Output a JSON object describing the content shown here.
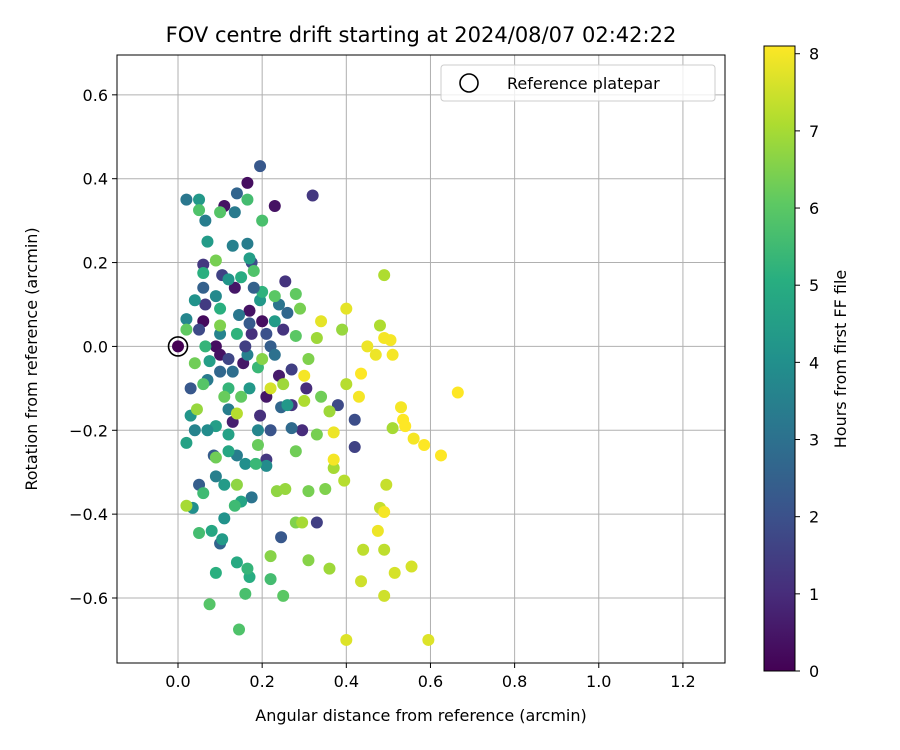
{
  "chart_data": {
    "type": "scatter",
    "title": "FOV centre drift starting at 2024/08/07 02:42:22",
    "xlabel": "Angular distance from reference (arcmin)",
    "ylabel": "Rotation from reference (arcmin)",
    "xlim": [
      -0.145,
      1.3
    ],
    "ylim": [
      -0.755,
      0.695
    ],
    "xticks": [
      0.0,
      0.2,
      0.4,
      0.6,
      0.8,
      1.0,
      1.2
    ],
    "xtick_labels": [
      "0.0",
      "0.2",
      "0.4",
      "0.6",
      "0.8",
      "1.0",
      "1.2"
    ],
    "yticks": [
      0.6,
      0.4,
      0.2,
      0.0,
      -0.2,
      -0.4,
      -0.6
    ],
    "ytick_labels": [
      "0.6",
      "0.4",
      "0.2",
      "0.0",
      "−0.2",
      "−0.4",
      "−0.6"
    ],
    "grid": true,
    "legend": {
      "position": "top-right",
      "entries": [
        "Reference platepar"
      ]
    },
    "reference_point": {
      "x": 0.0,
      "y": 0.0
    },
    "colorbar": {
      "label": "Hours from first FF file",
      "colormap": "viridis",
      "range": [
        0,
        8.1
      ],
      "ticks": [
        0,
        1,
        2,
        3,
        4,
        5,
        6,
        7,
        8
      ],
      "tick_labels": [
        "0",
        "1",
        "2",
        "3",
        "4",
        "5",
        "6",
        "7",
        "8"
      ]
    },
    "points": [
      {
        "x": 0.0,
        "y": 0.0,
        "h": 0.0
      },
      {
        "x": 0.165,
        "y": 0.39,
        "h": 0.3
      },
      {
        "x": 0.23,
        "y": 0.335,
        "h": 0.4
      },
      {
        "x": 0.11,
        "y": 0.335,
        "h": 0.4
      },
      {
        "x": 0.06,
        "y": 0.06,
        "h": 0.2
      },
      {
        "x": 0.09,
        "y": 0.0,
        "h": 0.3
      },
      {
        "x": 0.135,
        "y": 0.14,
        "h": 0.5
      },
      {
        "x": 0.17,
        "y": 0.085,
        "h": 0.4
      },
      {
        "x": 0.2,
        "y": 0.06,
        "h": 0.3
      },
      {
        "x": 0.155,
        "y": -0.04,
        "h": 0.5
      },
      {
        "x": 0.1,
        "y": -0.02,
        "h": 0.4
      },
      {
        "x": 0.24,
        "y": -0.07,
        "h": 0.6
      },
      {
        "x": 0.13,
        "y": -0.18,
        "h": 0.7
      },
      {
        "x": 0.21,
        "y": -0.12,
        "h": 0.5
      },
      {
        "x": 0.32,
        "y": 0.36,
        "h": 1.3
      },
      {
        "x": 0.255,
        "y": 0.155,
        "h": 1.2
      },
      {
        "x": 0.06,
        "y": 0.195,
        "h": 1.3
      },
      {
        "x": 0.175,
        "y": 0.03,
        "h": 1.1
      },
      {
        "x": 0.065,
        "y": 0.1,
        "h": 1.4
      },
      {
        "x": 0.25,
        "y": 0.04,
        "h": 1.2
      },
      {
        "x": 0.195,
        "y": -0.165,
        "h": 1.1
      },
      {
        "x": 0.305,
        "y": -0.1,
        "h": 1.0
      },
      {
        "x": 0.27,
        "y": -0.14,
        "h": 1.2
      },
      {
        "x": 0.295,
        "y": -0.2,
        "h": 1.0
      },
      {
        "x": 0.33,
        "y": -0.42,
        "h": 1.5
      },
      {
        "x": 0.21,
        "y": -0.27,
        "h": 1.3
      },
      {
        "x": 0.42,
        "y": -0.24,
        "h": 1.6
      },
      {
        "x": 0.38,
        "y": -0.14,
        "h": 1.8
      },
      {
        "x": 0.42,
        "y": -0.175,
        "h": 1.9
      },
      {
        "x": 0.27,
        "y": -0.055,
        "h": 1.5
      },
      {
        "x": 0.12,
        "y": -0.03,
        "h": 1.7
      },
      {
        "x": 0.05,
        "y": 0.04,
        "h": 1.8
      },
      {
        "x": 0.175,
        "y": 0.2,
        "h": 1.9
      },
      {
        "x": 0.105,
        "y": 0.17,
        "h": 1.6
      },
      {
        "x": 0.195,
        "y": 0.43,
        "h": 2.2
      },
      {
        "x": 0.14,
        "y": 0.365,
        "h": 2.6
      },
      {
        "x": 0.17,
        "y": 0.055,
        "h": 2.3
      },
      {
        "x": 0.22,
        "y": 0.0,
        "h": 2.4
      },
      {
        "x": 0.06,
        "y": 0.14,
        "h": 2.5
      },
      {
        "x": 0.03,
        "y": -0.1,
        "h": 2.2
      },
      {
        "x": 0.1,
        "y": -0.06,
        "h": 2.7
      },
      {
        "x": 0.22,
        "y": -0.2,
        "h": 2.1
      },
      {
        "x": 0.085,
        "y": -0.26,
        "h": 2.3
      },
      {
        "x": 0.05,
        "y": -0.33,
        "h": 2.4
      },
      {
        "x": 0.1,
        "y": -0.47,
        "h": 2.6
      },
      {
        "x": 0.245,
        "y": -0.455,
        "h": 2.2
      },
      {
        "x": 0.27,
        "y": -0.195,
        "h": 2.8
      },
      {
        "x": 0.245,
        "y": -0.145,
        "h": 2.7
      },
      {
        "x": 0.175,
        "y": -0.36,
        "h": 3.1
      },
      {
        "x": 0.02,
        "y": 0.35,
        "h": 3.2
      },
      {
        "x": 0.065,
        "y": 0.3,
        "h": 3.4
      },
      {
        "x": 0.135,
        "y": 0.32,
        "h": 3.3
      },
      {
        "x": 0.165,
        "y": 0.245,
        "h": 3.4
      },
      {
        "x": 0.13,
        "y": 0.24,
        "h": 3.5
      },
      {
        "x": 0.24,
        "y": 0.1,
        "h": 3.1
      },
      {
        "x": 0.145,
        "y": 0.075,
        "h": 3.2
      },
      {
        "x": 0.1,
        "y": 0.03,
        "h": 3.6
      },
      {
        "x": 0.02,
        "y": 0.065,
        "h": 3.7
      },
      {
        "x": 0.165,
        "y": -0.02,
        "h": 3.5
      },
      {
        "x": 0.07,
        "y": -0.08,
        "h": 3.3
      },
      {
        "x": 0.12,
        "y": -0.15,
        "h": 3.4
      },
      {
        "x": 0.04,
        "y": -0.2,
        "h": 3.6
      },
      {
        "x": 0.19,
        "y": -0.2,
        "h": 3.7
      },
      {
        "x": 0.14,
        "y": -0.26,
        "h": 3.4
      },
      {
        "x": 0.09,
        "y": -0.31,
        "h": 3.5
      },
      {
        "x": 0.21,
        "y": -0.285,
        "h": 3.9
      },
      {
        "x": 0.035,
        "y": -0.385,
        "h": 4.0
      },
      {
        "x": 0.16,
        "y": -0.28,
        "h": 4.0
      },
      {
        "x": 0.11,
        "y": -0.41,
        "h": 4.1
      },
      {
        "x": 0.05,
        "y": 0.35,
        "h": 4.3
      },
      {
        "x": 0.07,
        "y": 0.25,
        "h": 4.4
      },
      {
        "x": 0.17,
        "y": 0.21,
        "h": 4.5
      },
      {
        "x": 0.12,
        "y": 0.16,
        "h": 4.2
      },
      {
        "x": 0.04,
        "y": 0.11,
        "h": 4.1
      },
      {
        "x": 0.195,
        "y": 0.11,
        "h": 4.3
      },
      {
        "x": 0.23,
        "y": 0.06,
        "h": 4.4
      },
      {
        "x": 0.075,
        "y": -0.035,
        "h": 4.5
      },
      {
        "x": 0.17,
        "y": -0.1,
        "h": 4.3
      },
      {
        "x": 0.03,
        "y": -0.165,
        "h": 4.2
      },
      {
        "x": 0.09,
        "y": -0.19,
        "h": 4.5
      },
      {
        "x": 0.11,
        "y": -0.33,
        "h": 4.4
      },
      {
        "x": 0.02,
        "y": -0.23,
        "h": 4.6
      },
      {
        "x": 0.12,
        "y": -0.25,
        "h": 4.8
      },
      {
        "x": 0.15,
        "y": -0.37,
        "h": 4.7
      },
      {
        "x": 0.08,
        "y": -0.44,
        "h": 4.8
      },
      {
        "x": 0.14,
        "y": -0.515,
        "h": 4.9
      },
      {
        "x": 0.17,
        "y": -0.55,
        "h": 5.0
      },
      {
        "x": 0.09,
        "y": -0.54,
        "h": 5.1
      },
      {
        "x": 0.15,
        "y": 0.165,
        "h": 5.0
      },
      {
        "x": 0.06,
        "y": 0.175,
        "h": 5.1
      },
      {
        "x": 0.2,
        "y": 0.13,
        "h": 5.2
      },
      {
        "x": 0.1,
        "y": 0.09,
        "h": 5.1
      },
      {
        "x": 0.14,
        "y": 0.03,
        "h": 5.2
      },
      {
        "x": 0.065,
        "y": 0.0,
        "h": 5.3
      },
      {
        "x": 0.19,
        "y": -0.05,
        "h": 5.4
      },
      {
        "x": 0.12,
        "y": -0.1,
        "h": 5.3
      },
      {
        "x": 0.185,
        "y": -0.28,
        "h": 5.4
      },
      {
        "x": 0.06,
        "y": -0.35,
        "h": 5.5
      },
      {
        "x": 0.135,
        "y": -0.38,
        "h": 5.5
      },
      {
        "x": 0.22,
        "y": -0.555,
        "h": 5.6
      },
      {
        "x": 0.16,
        "y": -0.59,
        "h": 5.7
      },
      {
        "x": 0.145,
        "y": -0.675,
        "h": 5.8
      },
      {
        "x": 0.075,
        "y": -0.615,
        "h": 5.9
      },
      {
        "x": 0.05,
        "y": -0.445,
        "h": 5.6
      },
      {
        "x": 0.25,
        "y": -0.595,
        "h": 6.0
      },
      {
        "x": 0.165,
        "y": 0.35,
        "h": 5.6
      },
      {
        "x": 0.2,
        "y": 0.3,
        "h": 5.7
      },
      {
        "x": 0.05,
        "y": 0.325,
        "h": 5.8
      },
      {
        "x": 0.1,
        "y": 0.32,
        "h": 5.9
      },
      {
        "x": 0.18,
        "y": 0.18,
        "h": 5.8
      },
      {
        "x": 0.23,
        "y": 0.12,
        "h": 6.0
      },
      {
        "x": 0.28,
        "y": 0.125,
        "h": 6.1
      },
      {
        "x": 0.28,
        "y": 0.025,
        "h": 6.0
      },
      {
        "x": 0.06,
        "y": -0.09,
        "h": 5.9
      },
      {
        "x": 0.15,
        "y": -0.12,
        "h": 6.1
      },
      {
        "x": 0.11,
        "y": -0.12,
        "h": 6.2
      },
      {
        "x": 0.19,
        "y": -0.235,
        "h": 6.2
      },
      {
        "x": 0.09,
        "y": -0.265,
        "h": 6.3
      },
      {
        "x": 0.28,
        "y": -0.25,
        "h": 6.3
      },
      {
        "x": 0.33,
        "y": -0.21,
        "h": 6.4
      },
      {
        "x": 0.34,
        "y": -0.12,
        "h": 6.3
      },
      {
        "x": 0.35,
        "y": -0.34,
        "h": 6.5
      },
      {
        "x": 0.31,
        "y": -0.345,
        "h": 6.4
      },
      {
        "x": 0.28,
        "y": -0.42,
        "h": 6.5
      },
      {
        "x": 0.22,
        "y": -0.5,
        "h": 6.6
      },
      {
        "x": 0.31,
        "y": -0.51,
        "h": 6.6
      },
      {
        "x": 0.29,
        "y": 0.09,
        "h": 6.4
      },
      {
        "x": 0.31,
        "y": -0.03,
        "h": 6.5
      },
      {
        "x": 0.09,
        "y": 0.205,
        "h": 6.4
      },
      {
        "x": 0.2,
        "y": -0.03,
        "h": 6.6
      },
      {
        "x": 0.14,
        "y": -0.33,
        "h": 6.7
      },
      {
        "x": 0.235,
        "y": -0.345,
        "h": 6.7
      },
      {
        "x": 0.255,
        "y": -0.34,
        "h": 6.8
      },
      {
        "x": 0.39,
        "y": 0.04,
        "h": 6.8
      },
      {
        "x": 0.33,
        "y": 0.02,
        "h": 6.9
      },
      {
        "x": 0.36,
        "y": -0.155,
        "h": 6.9
      },
      {
        "x": 0.36,
        "y": -0.53,
        "h": 6.9
      },
      {
        "x": 0.295,
        "y": -0.42,
        "h": 7.0
      },
      {
        "x": 0.37,
        "y": -0.29,
        "h": 7.0
      },
      {
        "x": 0.51,
        "y": -0.195,
        "h": 7.0
      },
      {
        "x": 0.48,
        "y": 0.05,
        "h": 7.1
      },
      {
        "x": 0.49,
        "y": 0.17,
        "h": 7.1
      },
      {
        "x": 0.4,
        "y": -0.09,
        "h": 7.2
      },
      {
        "x": 0.395,
        "y": -0.32,
        "h": 7.2
      },
      {
        "x": 0.44,
        "y": -0.485,
        "h": 7.3
      },
      {
        "x": 0.49,
        "y": -0.485,
        "h": 7.3
      },
      {
        "x": 0.495,
        "y": -0.33,
        "h": 7.4
      },
      {
        "x": 0.48,
        "y": -0.385,
        "h": 7.4
      },
      {
        "x": 0.435,
        "y": -0.56,
        "h": 7.5
      },
      {
        "x": 0.49,
        "y": -0.595,
        "h": 7.5
      },
      {
        "x": 0.555,
        "y": -0.525,
        "h": 7.6
      },
      {
        "x": 0.515,
        "y": -0.54,
        "h": 7.6
      },
      {
        "x": 0.4,
        "y": -0.7,
        "h": 7.7
      },
      {
        "x": 0.595,
        "y": -0.7,
        "h": 7.7
      },
      {
        "x": 0.4,
        "y": 0.09,
        "h": 7.8
      },
      {
        "x": 0.34,
        "y": 0.06,
        "h": 7.8
      },
      {
        "x": 0.45,
        "y": 0.0,
        "h": 7.9
      },
      {
        "x": 0.47,
        "y": -0.02,
        "h": 7.9
      },
      {
        "x": 0.49,
        "y": 0.02,
        "h": 8.0
      },
      {
        "x": 0.505,
        "y": 0.015,
        "h": 8.0
      },
      {
        "x": 0.51,
        "y": -0.02,
        "h": 8.0
      },
      {
        "x": 0.435,
        "y": -0.065,
        "h": 8.1
      },
      {
        "x": 0.43,
        "y": -0.12,
        "h": 8.0
      },
      {
        "x": 0.37,
        "y": -0.205,
        "h": 7.9
      },
      {
        "x": 0.37,
        "y": -0.27,
        "h": 8.0
      },
      {
        "x": 0.53,
        "y": -0.145,
        "h": 8.0
      },
      {
        "x": 0.535,
        "y": -0.175,
        "h": 8.1
      },
      {
        "x": 0.54,
        "y": -0.19,
        "h": 8.1
      },
      {
        "x": 0.56,
        "y": -0.22,
        "h": 8.0
      },
      {
        "x": 0.585,
        "y": -0.235,
        "h": 8.1
      },
      {
        "x": 0.625,
        "y": -0.26,
        "h": 8.1
      },
      {
        "x": 0.665,
        "y": -0.11,
        "h": 8.1
      },
      {
        "x": 0.3,
        "y": -0.07,
        "h": 8.0
      },
      {
        "x": 0.49,
        "y": -0.395,
        "h": 8.0
      },
      {
        "x": 0.475,
        "y": -0.44,
        "h": 7.9
      },
      {
        "x": 0.3,
        "y": -0.13,
        "h": 7.1
      },
      {
        "x": 0.25,
        "y": -0.09,
        "h": 6.9
      },
      {
        "x": 0.22,
        "y": -0.1,
        "h": 7.6
      },
      {
        "x": 0.02,
        "y": -0.38,
        "h": 7.0
      },
      {
        "x": 0.02,
        "y": 0.04,
        "h": 6.1
      },
      {
        "x": 0.04,
        "y": -0.04,
        "h": 6.3
      },
      {
        "x": 0.1,
        "y": 0.05,
        "h": 6.5
      },
      {
        "x": 0.14,
        "y": -0.16,
        "h": 7.2
      },
      {
        "x": 0.045,
        "y": -0.15,
        "h": 6.8
      },
      {
        "x": 0.21,
        "y": 0.03,
        "h": 2.0
      },
      {
        "x": 0.16,
        "y": 0.0,
        "h": 1.5
      },
      {
        "x": 0.13,
        "y": -0.06,
        "h": 2.9
      },
      {
        "x": 0.26,
        "y": 0.08,
        "h": 2.7
      },
      {
        "x": 0.23,
        "y": -0.02,
        "h": 3.0
      },
      {
        "x": 0.09,
        "y": 0.12,
        "h": 3.8
      },
      {
        "x": 0.18,
        "y": 0.14,
        "h": 2.5
      },
      {
        "x": 0.07,
        "y": -0.2,
        "h": 3.9
      },
      {
        "x": 0.12,
        "y": -0.21,
        "h": 4.6
      },
      {
        "x": 0.26,
        "y": -0.14,
        "h": 4.3
      },
      {
        "x": 0.105,
        "y": -0.46,
        "h": 4.4
      },
      {
        "x": 0.165,
        "y": -0.53,
        "h": 5.3
      }
    ]
  }
}
